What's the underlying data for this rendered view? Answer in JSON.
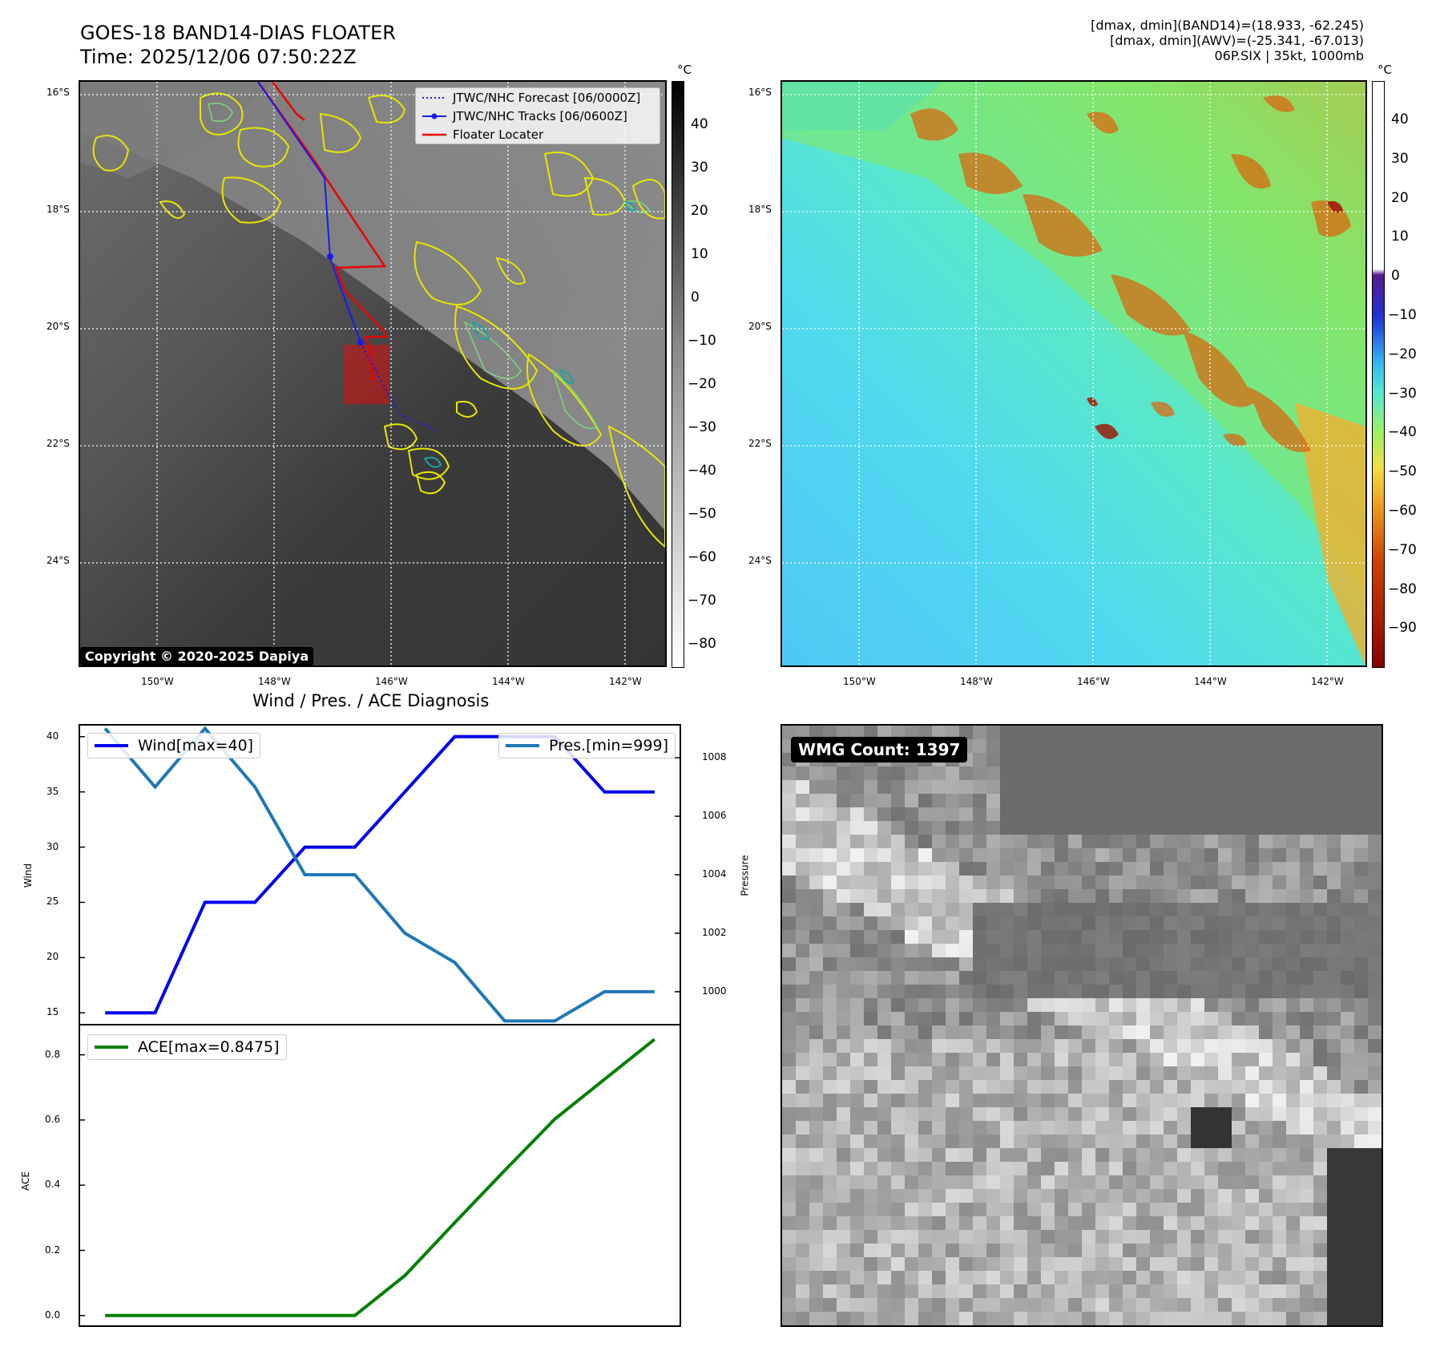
{
  "header": {
    "title_line1": "GOES-18 BAND14-DIAS FLOATER",
    "title_line2": "Time: 2025/12/06 07:50:22Z",
    "stats_line1": "[dmax, dmin](BAND14)=(18.933, -62.245)",
    "stats_line2": "[dmax, dmin](AWV)=(-25.341, -67.013)",
    "stats_line3": "06P.SIX | 35kt, 1000mb"
  },
  "map_axes": {
    "lat_labels": [
      "16°S",
      "18°S",
      "20°S",
      "22°S",
      "24°S"
    ],
    "lon_labels": [
      "150°W",
      "148°W",
      "146°W",
      "144°W",
      "142°W"
    ]
  },
  "ir_panel": {
    "legend": [
      "JTWC/NHC Forecast [06/0000Z]",
      "JTWC/NHC Tracks [06/0600Z]",
      "Floater Locater"
    ],
    "copyright": "Copyright © 2020-2025 Dapiya",
    "colorbar_unit": "°C",
    "colorbar_ticks": [
      "40",
      "30",
      "20",
      "10",
      "0",
      "−10",
      "−20",
      "−30",
      "−40",
      "−50",
      "−60",
      "−70",
      "−80"
    ]
  },
  "wv_panel": {
    "colorbar_unit": "°C",
    "colorbar_ticks": [
      "40",
      "30",
      "20",
      "10",
      "0",
      "−10",
      "−20",
      "−30",
      "−40",
      "−50",
      "−60",
      "−70",
      "−80",
      "−90"
    ]
  },
  "diagnosis": {
    "title": "Wind / Pres. / ACE Diagnosis",
    "wind_legend": "Wind[max=40]",
    "pres_legend": "Pres.[min=999]",
    "ace_legend": "ACE[max=0.8475]",
    "wind_ylabel": "Wind",
    "pres_ylabel": "Pressure",
    "ace_ylabel": "ACE",
    "wind_ticks": [
      "40",
      "35",
      "30",
      "25",
      "20",
      "15"
    ],
    "pres_ticks": [
      "1008",
      "1006",
      "1004",
      "1002",
      "1000"
    ],
    "ace_ticks": [
      "0.8",
      "0.6",
      "0.4",
      "0.2",
      "0.0"
    ]
  },
  "wmg_panel": {
    "label": "WMG Count: 1397"
  },
  "colors": {
    "wind": "#0000ee",
    "pressure": "#1f77b4",
    "ace": "#008000",
    "floater": "#ee0000",
    "track": "#0000ee"
  },
  "chart_data": [
    {
      "type": "line",
      "x": [
        0,
        1,
        2,
        3,
        4,
        5,
        6,
        7,
        8,
        9,
        10,
        11
      ],
      "series": [
        {
          "name": "Wind[max=40]",
          "axis": "left",
          "values": [
            15,
            15,
            25,
            25,
            30,
            30,
            35,
            40,
            40,
            40,
            35,
            35
          ]
        },
        {
          "name": "Pres.[min=999]",
          "axis": "right",
          "values": [
            1009,
            1007,
            1009,
            1007,
            1004,
            1004,
            1002,
            1001,
            999,
            999,
            1000,
            1000
          ]
        }
      ],
      "title": "Wind / Pres. / ACE Diagnosis",
      "ylabel": "Wind",
      "ylabel_right": "Pressure",
      "ylim": [
        14,
        41
      ],
      "ylim_right": [
        998.9,
        1009.1
      ]
    },
    {
      "type": "line",
      "x": [
        0,
        1,
        2,
        3,
        4,
        5,
        6,
        7,
        8,
        9,
        10,
        11
      ],
      "series": [
        {
          "name": "ACE[max=0.8475]",
          "values": [
            0,
            0,
            0,
            0,
            0,
            0,
            0.1225,
            0.285,
            0.445,
            0.6025,
            0.725,
            0.8475
          ]
        }
      ],
      "ylabel": "ACE",
      "ylim": [
        -0.03,
        0.89
      ]
    }
  ]
}
